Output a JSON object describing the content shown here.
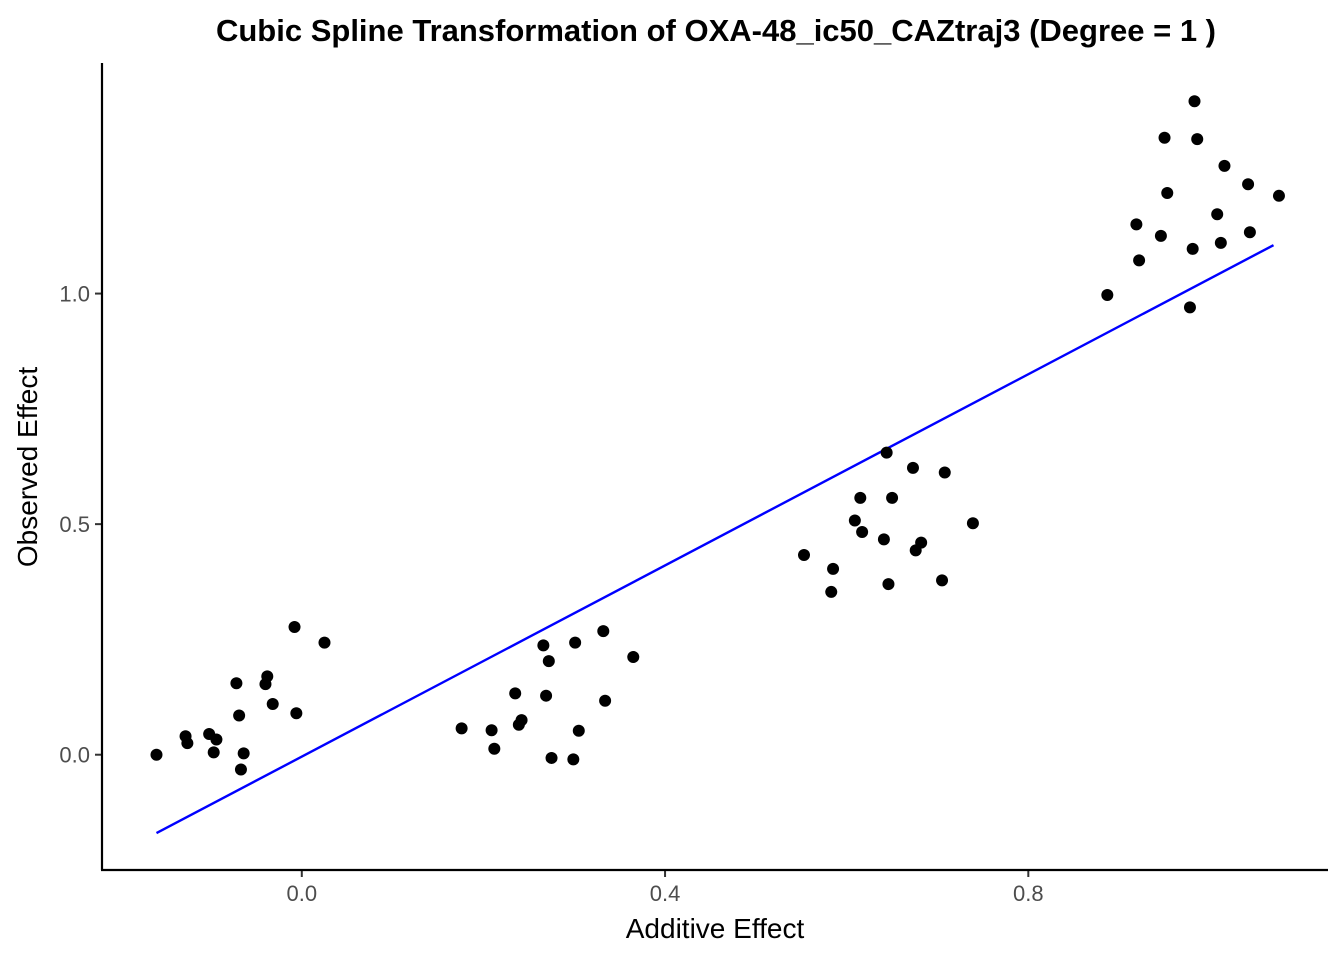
{
  "chart_data": {
    "type": "scatter",
    "title": "Cubic Spline Transformation of OXA-48_ic50_CAZtraj3 (Degree = 1 )",
    "xlabel": "Additive Effect",
    "ylabel": "Observed Effect",
    "xlim": [
      -0.22,
      1.13
    ],
    "ylim": [
      -0.25,
      1.5
    ],
    "xticks": [
      0.0,
      0.4,
      0.8
    ],
    "xtick_labels": [
      "0.0",
      "0.4",
      "0.8"
    ],
    "yticks": [
      0.0,
      0.5,
      1.0
    ],
    "ytick_labels": [
      "0.0",
      "0.5",
      "1.0"
    ],
    "grid": false,
    "colors": {
      "points": "#000000",
      "fit_line": "#0000ff"
    },
    "fit_line": {
      "x": [
        -0.16,
        1.07
      ],
      "y": [
        -0.17,
        1.105
      ]
    },
    "points": [
      [
        -0.16,
        0.0
      ],
      [
        -0.128,
        0.04
      ],
      [
        -0.126,
        0.025
      ],
      [
        -0.102,
        0.045
      ],
      [
        -0.097,
        0.005
      ],
      [
        -0.094,
        0.033
      ],
      [
        -0.072,
        0.155
      ],
      [
        -0.069,
        0.085
      ],
      [
        -0.067,
        -0.032
      ],
      [
        -0.064,
        0.003
      ],
      [
        -0.04,
        0.153
      ],
      [
        -0.038,
        0.17
      ],
      [
        -0.032,
        0.11
      ],
      [
        -0.008,
        0.277
      ],
      [
        -0.006,
        0.09
      ],
      [
        0.025,
        0.243
      ],
      [
        0.176,
        0.057
      ],
      [
        0.209,
        0.053
      ],
      [
        0.212,
        0.013
      ],
      [
        0.235,
        0.133
      ],
      [
        0.239,
        0.065
      ],
      [
        0.242,
        0.075
      ],
      [
        0.266,
        0.237
      ],
      [
        0.269,
        0.128
      ],
      [
        0.272,
        0.203
      ],
      [
        0.275,
        -0.007
      ],
      [
        0.299,
        -0.01
      ],
      [
        0.301,
        0.243
      ],
      [
        0.305,
        0.052
      ],
      [
        0.332,
        0.268
      ],
      [
        0.334,
        0.117
      ],
      [
        0.365,
        0.212
      ],
      [
        0.553,
        0.433
      ],
      [
        0.583,
        0.353
      ],
      [
        0.585,
        0.403
      ],
      [
        0.609,
        0.508
      ],
      [
        0.615,
        0.557
      ],
      [
        0.617,
        0.483
      ],
      [
        0.641,
        0.467
      ],
      [
        0.644,
        0.655
      ],
      [
        0.646,
        0.37
      ],
      [
        0.65,
        0.557
      ],
      [
        0.673,
        0.622
      ],
      [
        0.676,
        0.443
      ],
      [
        0.682,
        0.46
      ],
      [
        0.705,
        0.378
      ],
      [
        0.708,
        0.612
      ],
      [
        0.739,
        0.502
      ],
      [
        0.887,
        0.997
      ],
      [
        0.919,
        1.15
      ],
      [
        0.922,
        1.072
      ],
      [
        0.946,
        1.125
      ],
      [
        0.95,
        1.338
      ],
      [
        0.953,
        1.218
      ],
      [
        0.978,
        0.97
      ],
      [
        0.981,
        1.097
      ],
      [
        0.983,
        1.417
      ],
      [
        0.986,
        1.335
      ],
      [
        1.008,
        1.172
      ],
      [
        1.012,
        1.11
      ],
      [
        1.016,
        1.277
      ],
      [
        1.042,
        1.237
      ],
      [
        1.044,
        1.133
      ],
      [
        1.076,
        1.212
      ]
    ]
  }
}
